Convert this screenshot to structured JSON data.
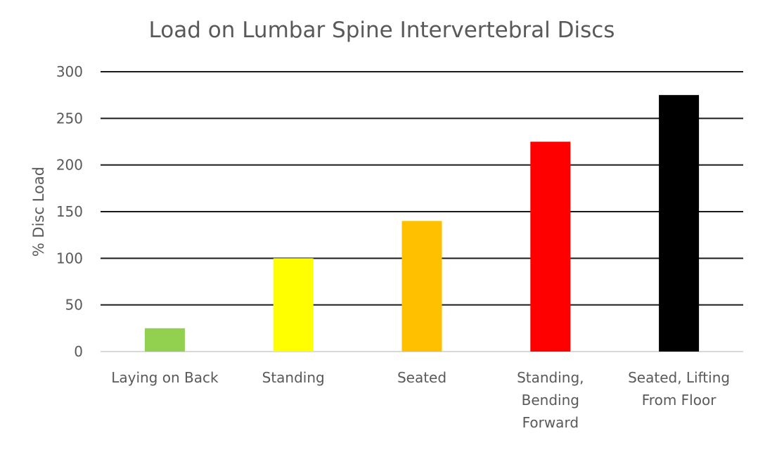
{
  "chart_data": {
    "type": "bar",
    "title": "Load on Lumbar Spine Intervertebral Discs",
    "xlabel": "",
    "ylabel": "% Disc Load",
    "ylim": [
      0,
      300
    ],
    "yticks": [
      "0",
      "50",
      "100",
      "150",
      "200",
      "250",
      "300"
    ],
    "grid": true,
    "legend": "none",
    "categories": [
      [
        "Laying on Back"
      ],
      [
        "Standing"
      ],
      [
        "Seated"
      ],
      [
        "Standing,",
        "Bending",
        "Forward"
      ],
      [
        "Seated, Lifting",
        "From Floor"
      ]
    ],
    "values": [
      25,
      100,
      140,
      225,
      275
    ],
    "colors": [
      "#92D050",
      "#FFFF00",
      "#FFC000",
      "#FF0000",
      "#000000"
    ]
  }
}
